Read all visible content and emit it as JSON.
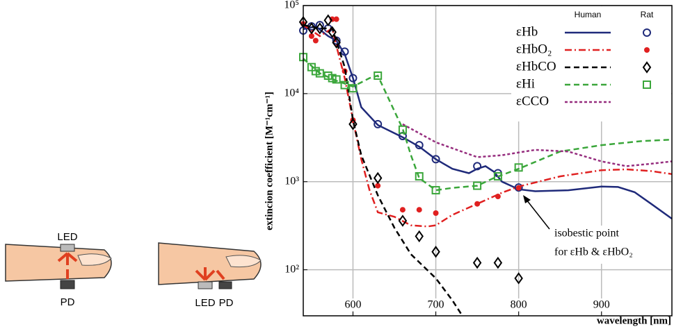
{
  "illustrations": {
    "left": {
      "top_label": "LED",
      "bottom_label": "PD"
    },
    "right": {
      "led_label": "LED",
      "pd_label": "PD"
    }
  },
  "chart_data": {
    "type": "line",
    "xlabel": "wavelength [nm]",
    "ylabel": "extincion coefficient [M⁻¹cm⁻¹]",
    "xlim": [
      540,
      985
    ],
    "ylim": [
      30,
      100000
    ],
    "log_y": true,
    "grid": true,
    "xticks": [
      600,
      700,
      800,
      900
    ],
    "yticks": [
      {
        "value": 100,
        "label": "10²"
      },
      {
        "value": 1000,
        "label": "10³"
      },
      {
        "value": 10000,
        "label": "10⁴"
      },
      {
        "value": 100000,
        "label": "10⁵"
      }
    ],
    "legend_headers": [
      "Human",
      "Rat"
    ],
    "series": [
      {
        "name": "εHb",
        "color": "#1f2a7a",
        "dash": "solid",
        "marker": "circle",
        "line": {
          "x": [
            540,
            555,
            570,
            580,
            590,
            600,
            610,
            630,
            660,
            680,
            700,
            720,
            740,
            750,
            760,
            770,
            780,
            800,
            820,
            860,
            900,
            920,
            940,
            960,
            985
          ],
          "values": [
            54000,
            58000,
            45000,
            40000,
            28000,
            15000,
            7000,
            4400,
            3200,
            2500,
            1800,
            1400,
            1250,
            1400,
            1500,
            1300,
            1000,
            820,
            780,
            800,
            880,
            870,
            760,
            560,
            380
          ]
        },
        "points": {
          "x": [
            540,
            550,
            560,
            570,
            580,
            590,
            600,
            630,
            660,
            680,
            700,
            750,
            775,
            800
          ],
          "values": [
            52000,
            58000,
            60000,
            55000,
            40000,
            30000,
            15000,
            4500,
            3300,
            2600,
            1800,
            1500,
            1250,
            860
          ]
        }
      },
      {
        "name": "εHbO₂",
        "color": "#e02020",
        "dash": "dashdot",
        "marker": "dot",
        "line": {
          "x": [
            540,
            560,
            575,
            580,
            590,
            600,
            610,
            620,
            630,
            650,
            670,
            690,
            700,
            720,
            750,
            780,
            800,
            850,
            900,
            930,
            960,
            985
          ],
          "values": [
            60000,
            45000,
            55000,
            35000,
            15000,
            5000,
            1800,
            800,
            450,
            400,
            320,
            310,
            320,
            420,
            560,
            750,
            880,
            1150,
            1350,
            1380,
            1320,
            1220
          ]
        },
        "points": {
          "x": [
            540,
            550,
            555,
            575,
            580,
            590,
            600,
            630,
            660,
            680,
            700,
            750,
            775,
            800
          ],
          "values": [
            62000,
            45000,
            40000,
            70000,
            70000,
            18000,
            5000,
            900,
            480,
            480,
            440,
            560,
            680,
            850
          ]
        }
      },
      {
        "name": "εHbCO",
        "color": "#000000",
        "dash": "dashed",
        "marker": "diamond",
        "line": {
          "x": [
            540,
            560,
            575,
            590,
            600,
            610,
            630,
            650,
            670,
            700,
            720,
            732
          ],
          "values": [
            60000,
            55000,
            55000,
            20000,
            5000,
            2000,
            700,
            300,
            150,
            80,
            45,
            30
          ]
        },
        "points": {
          "x": [
            540,
            550,
            560,
            570,
            575,
            580,
            600,
            630,
            660,
            680,
            700,
            750,
            775,
            800
          ],
          "values": [
            65000,
            55000,
            55000,
            68000,
            50000,
            38000,
            4500,
            1100,
            360,
            240,
            160,
            120,
            120,
            80
          ]
        }
      },
      {
        "name": "εHi",
        "color": "#3aa63a",
        "dash": "dashed",
        "marker": "square",
        "line": {
          "x": [
            540,
            560,
            580,
            590,
            600,
            620,
            630,
            660,
            670,
            680,
            700,
            720,
            750,
            770,
            800,
            850,
            900,
            950,
            985
          ],
          "values": [
            25000,
            17000,
            14000,
            13000,
            12000,
            15000,
            16000,
            4000,
            2000,
            1100,
            800,
            850,
            900,
            1100,
            1400,
            2200,
            2600,
            2900,
            3000
          ]
        },
        "points": {
          "x": [
            540,
            550,
            555,
            560,
            570,
            575,
            580,
            590,
            600,
            630,
            660,
            680,
            700,
            750,
            775,
            800
          ],
          "values": [
            26000,
            20000,
            18000,
            17000,
            16000,
            15000,
            14500,
            12500,
            11500,
            16000,
            3900,
            1150,
            800,
            900,
            1150,
            1450
          ]
        }
      },
      {
        "name": "εCCO",
        "color": "#962d7e",
        "dash": "dotted",
        "line": {
          "x": [
            660,
            700,
            750,
            780,
            820,
            860,
            900,
            930,
            960,
            985
          ],
          "values": [
            4500,
            2800,
            1900,
            2000,
            2300,
            2200,
            1700,
            1500,
            1600,
            1700
          ]
        }
      }
    ],
    "annotation": {
      "line1": "isobestic point",
      "line2": "for εHb & εHbO₂"
    }
  }
}
